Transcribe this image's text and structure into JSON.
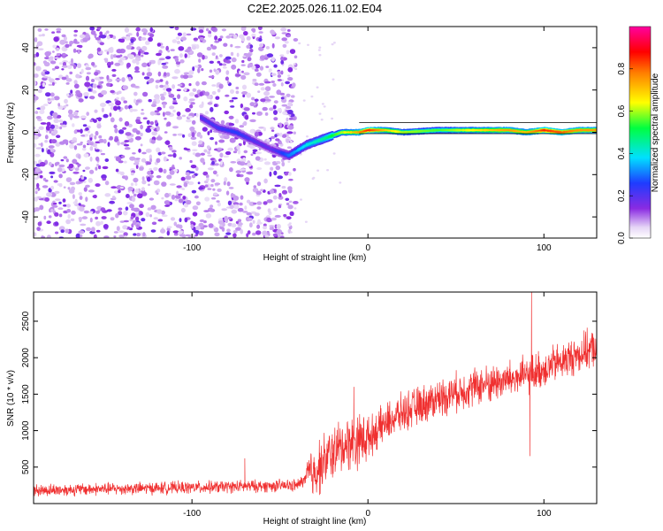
{
  "title": "C2E2.2025.026.11.02.E04",
  "chart_data": [
    {
      "type": "heatmap",
      "xlabel": "Height of straight line (km)",
      "ylabel": "Frequency (Hz)",
      "xlim": [
        -190,
        130
      ],
      "ylim": [
        -50,
        50
      ],
      "xticks": [
        -100,
        0,
        100
      ],
      "xtick_labels": [
        "-100",
        "0",
        "100"
      ],
      "yticks": [
        -40,
        -20,
        0,
        20,
        40
      ],
      "ytick_labels": [
        "-40",
        "-20",
        "0",
        "20",
        "40"
      ],
      "grid": false,
      "noise_region_x": [
        -190,
        -45
      ],
      "ridge": {
        "x": [
          -95,
          -85,
          -75,
          -65,
          -55,
          -45,
          -35,
          -25,
          -15,
          -5,
          0,
          10,
          20,
          40,
          60,
          80,
          90,
          100,
          110,
          120,
          130
        ],
        "y": [
          7,
          2,
          0,
          -4,
          -8,
          -11,
          -6,
          -3,
          0,
          0,
          1,
          1,
          0,
          1,
          1,
          1,
          0,
          1,
          0,
          1,
          1
        ],
        "amplitude": [
          0.2,
          0.22,
          0.25,
          0.2,
          0.18,
          0.3,
          0.4,
          0.45,
          0.6,
          0.75,
          0.85,
          0.7,
          0.6,
          0.55,
          0.65,
          0.75,
          0.7,
          0.85,
          0.8,
          0.75,
          0.75
        ]
      },
      "colorbar": {
        "label": "Normalized spectral amplitude",
        "range": [
          0,
          1
        ],
        "ticks": [
          0.0,
          0.2,
          0.4,
          0.6,
          0.8
        ],
        "tick_labels": [
          "0.0",
          "0.2",
          "0.4",
          "0.6",
          "0.8"
        ],
        "colormap": "rainbow (white → purple → blue → cyan → green → yellow → red → magenta)"
      }
    },
    {
      "type": "line",
      "xlabel": "Height of straight line (km)",
      "ylabel": "SNR (10 * v/v)",
      "xlim": [
        -190,
        130
      ],
      "ylim": [
        0,
        2900
      ],
      "xticks": [
        -100,
        0,
        100
      ],
      "xtick_labels": [
        "-100",
        "0",
        "100"
      ],
      "yticks": [
        500,
        1000,
        1500,
        2000,
        2500
      ],
      "ytick_labels": [
        "500",
        "1000",
        "1500",
        "2000",
        "2500"
      ],
      "color": "#f03030",
      "grid": false,
      "trend": {
        "x": [
          -190,
          -150,
          -100,
          -60,
          -40,
          -30,
          -20,
          -10,
          0,
          10,
          20,
          40,
          60,
          80,
          90,
          100,
          110,
          120,
          130
        ],
        "y": [
          180,
          200,
          220,
          240,
          250,
          450,
          700,
          850,
          900,
          1100,
          1250,
          1450,
          1600,
          1700,
          1750,
          1850,
          1950,
          2050,
          2150
        ]
      },
      "spikes": [
        {
          "x": 93,
          "y": 2900
        },
        {
          "x": 92,
          "y": 650
        },
        {
          "x": -8,
          "y": 1600
        },
        {
          "x": -70,
          "y": 620
        }
      ]
    }
  ]
}
